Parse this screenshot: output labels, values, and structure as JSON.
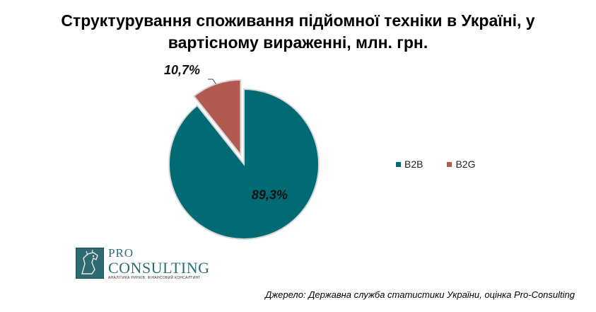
{
  "title_line1": "Структурування споживання підйомної техніки в Україні, у",
  "title_line2": "вартісному вираженні, млн. грн.",
  "chart_data": {
    "type": "pie",
    "title": "Структурування споживання підйомної техніки в Україні, у вартісному вираженні, млн. грн.",
    "categories": [
      "B2B",
      "B2G"
    ],
    "values": [
      89.3,
      10.7
    ],
    "value_labels": [
      "89,3%",
      "10,7%"
    ],
    "colors": [
      "#006b75",
      "#b05a50"
    ],
    "exploded": [
      "B2G"
    ],
    "legend_position": "right"
  },
  "legend": [
    {
      "label": "B2B",
      "color": "#006b75"
    },
    {
      "label": "B2G",
      "color": "#b05a50"
    }
  ],
  "logo": {
    "pro": "PRO",
    "consulting": "CONSULTING",
    "tagline": "АНАЛІТИКА РИНКІВ. ФІНАНСОВИЙ КОНСАЛТИНГ"
  },
  "source": "Джерело: Державна служба статистики України, оцінка Pro-Consulting"
}
